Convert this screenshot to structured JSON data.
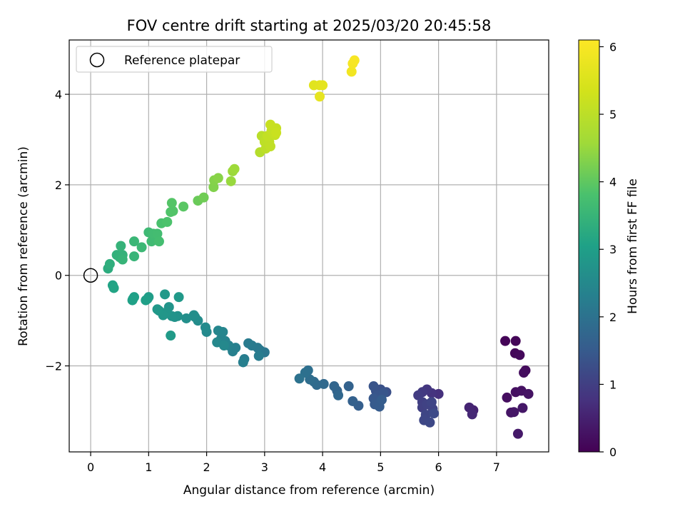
{
  "chart_data": {
    "type": "scatter",
    "title": "FOV centre drift starting at 2025/03/20 20:45:58",
    "xlabel": "Angular distance from reference (arcmin)",
    "ylabel": "Rotation from reference (arcmin)",
    "xlim": [
      -0.37,
      7.9
    ],
    "ylim": [
      -3.9,
      5.2
    ],
    "xticks": [
      "0",
      "1",
      "2",
      "3",
      "4",
      "5",
      "6",
      "7"
    ],
    "yticks": [
      "−2",
      "0",
      "2",
      "4"
    ],
    "grid": true,
    "legend": {
      "placement": "top-left",
      "entries": [
        "Reference platepar"
      ]
    },
    "reference": {
      "x": 0,
      "y": 0
    },
    "colorbar": {
      "label": "Hours from first FF file",
      "range": [
        0,
        6.1
      ],
      "ticks": [
        "0",
        "1",
        "2",
        "3",
        "4",
        "5",
        "6"
      ],
      "colormap": "viridis"
    },
    "points": [
      {
        "x": 7.15,
        "y": -1.45,
        "h": 0.05
      },
      {
        "x": 7.33,
        "y": -1.45,
        "h": 0.08
      },
      {
        "x": 7.32,
        "y": -1.72,
        "h": 0.1
      },
      {
        "x": 7.4,
        "y": -1.76,
        "h": 0.12
      },
      {
        "x": 7.5,
        "y": -2.1,
        "h": 0.15
      },
      {
        "x": 7.47,
        "y": -2.15,
        "h": 0.18
      },
      {
        "x": 7.18,
        "y": -2.7,
        "h": 0.2
      },
      {
        "x": 7.33,
        "y": -2.58,
        "h": 0.22
      },
      {
        "x": 7.43,
        "y": -2.55,
        "h": 0.25
      },
      {
        "x": 7.55,
        "y": -2.62,
        "h": 0.28
      },
      {
        "x": 7.25,
        "y": -3.03,
        "h": 0.3
      },
      {
        "x": 7.3,
        "y": -3.02,
        "h": 0.32
      },
      {
        "x": 7.45,
        "y": -2.93,
        "h": 0.35
      },
      {
        "x": 7.37,
        "y": -3.5,
        "h": 0.38
      },
      {
        "x": 6.6,
        "y": -2.98,
        "h": 0.5
      },
      {
        "x": 6.53,
        "y": -2.92,
        "h": 0.55
      },
      {
        "x": 6.58,
        "y": -3.07,
        "h": 0.6
      },
      {
        "x": 6.0,
        "y": -2.62,
        "h": 0.75
      },
      {
        "x": 5.88,
        "y": -2.6,
        "h": 0.8
      },
      {
        "x": 5.8,
        "y": -2.52,
        "h": 0.85
      },
      {
        "x": 5.72,
        "y": -2.58,
        "h": 0.9
      },
      {
        "x": 5.65,
        "y": -2.65,
        "h": 0.95
      },
      {
        "x": 5.72,
        "y": -2.8,
        "h": 1.0
      },
      {
        "x": 5.72,
        "y": -2.92,
        "h": 1.02
      },
      {
        "x": 5.8,
        "y": -2.85,
        "h": 1.05
      },
      {
        "x": 5.9,
        "y": -2.95,
        "h": 1.07
      },
      {
        "x": 5.88,
        "y": -2.8,
        "h": 1.1
      },
      {
        "x": 5.78,
        "y": -3.08,
        "h": 1.12
      },
      {
        "x": 5.75,
        "y": -3.2,
        "h": 1.15
      },
      {
        "x": 5.85,
        "y": -3.25,
        "h": 1.17
      },
      {
        "x": 5.92,
        "y": -3.05,
        "h": 1.2
      },
      {
        "x": 5.1,
        "y": -2.58,
        "h": 1.3
      },
      {
        "x": 5.0,
        "y": -2.52,
        "h": 1.32
      },
      {
        "x": 4.92,
        "y": -2.55,
        "h": 1.35
      },
      {
        "x": 4.88,
        "y": -2.45,
        "h": 1.38
      },
      {
        "x": 4.95,
        "y": -2.65,
        "h": 1.4
      },
      {
        "x": 5.05,
        "y": -2.6,
        "h": 1.42
      },
      {
        "x": 4.88,
        "y": -2.72,
        "h": 1.45
      },
      {
        "x": 4.98,
        "y": -2.8,
        "h": 1.47
      },
      {
        "x": 4.9,
        "y": -2.85,
        "h": 1.5
      },
      {
        "x": 4.98,
        "y": -2.9,
        "h": 1.52
      },
      {
        "x": 5.02,
        "y": -2.75,
        "h": 1.55
      },
      {
        "x": 4.62,
        "y": -2.88,
        "h": 1.6
      },
      {
        "x": 4.52,
        "y": -2.78,
        "h": 1.63
      },
      {
        "x": 4.45,
        "y": -2.45,
        "h": 1.66
      },
      {
        "x": 4.25,
        "y": -2.55,
        "h": 1.7
      },
      {
        "x": 4.2,
        "y": -2.45,
        "h": 1.73
      },
      {
        "x": 4.27,
        "y": -2.65,
        "h": 1.76
      },
      {
        "x": 4.02,
        "y": -2.4,
        "h": 1.8
      },
      {
        "x": 3.9,
        "y": -2.42,
        "h": 1.83
      },
      {
        "x": 3.85,
        "y": -2.35,
        "h": 1.86
      },
      {
        "x": 3.78,
        "y": -2.3,
        "h": 1.9
      },
      {
        "x": 3.75,
        "y": -2.1,
        "h": 1.93
      },
      {
        "x": 3.7,
        "y": -2.15,
        "h": 1.96
      },
      {
        "x": 3.6,
        "y": -2.28,
        "h": 2.0
      },
      {
        "x": 3.0,
        "y": -1.7,
        "h": 2.1
      },
      {
        "x": 2.92,
        "y": -1.65,
        "h": 2.12
      },
      {
        "x": 2.88,
        "y": -1.6,
        "h": 2.15
      },
      {
        "x": 2.78,
        "y": -1.55,
        "h": 2.18
      },
      {
        "x": 2.72,
        "y": -1.5,
        "h": 2.2
      },
      {
        "x": 2.9,
        "y": -1.78,
        "h": 2.22
      },
      {
        "x": 2.65,
        "y": -1.85,
        "h": 2.25
      },
      {
        "x": 2.63,
        "y": -1.92,
        "h": 2.28
      },
      {
        "x": 2.5,
        "y": -1.6,
        "h": 2.3
      },
      {
        "x": 2.45,
        "y": -1.68,
        "h": 2.32
      },
      {
        "x": 2.38,
        "y": -1.55,
        "h": 2.35
      },
      {
        "x": 2.32,
        "y": -1.45,
        "h": 2.38
      },
      {
        "x": 2.25,
        "y": -1.4,
        "h": 2.4
      },
      {
        "x": 2.28,
        "y": -1.25,
        "h": 2.42
      },
      {
        "x": 2.2,
        "y": -1.22,
        "h": 2.45
      },
      {
        "x": 2.18,
        "y": -1.48,
        "h": 2.48
      },
      {
        "x": 2.3,
        "y": -1.55,
        "h": 2.5
      },
      {
        "x": 2.0,
        "y": -1.25,
        "h": 2.52
      },
      {
        "x": 1.98,
        "y": -1.15,
        "h": 2.55
      },
      {
        "x": 1.85,
        "y": -1.0,
        "h": 2.58
      },
      {
        "x": 1.8,
        "y": -0.92,
        "h": 2.6
      },
      {
        "x": 1.78,
        "y": -0.88,
        "h": 2.62
      },
      {
        "x": 1.65,
        "y": -0.95,
        "h": 2.65
      },
      {
        "x": 1.5,
        "y": -0.9,
        "h": 2.7
      },
      {
        "x": 1.45,
        "y": -0.92,
        "h": 2.72
      },
      {
        "x": 1.4,
        "y": -0.9,
        "h": 2.74
      },
      {
        "x": 1.35,
        "y": -0.7,
        "h": 2.76
      },
      {
        "x": 1.3,
        "y": -0.82,
        "h": 2.78
      },
      {
        "x": 1.25,
        "y": -0.88,
        "h": 2.8
      },
      {
        "x": 1.18,
        "y": -0.78,
        "h": 2.82
      },
      {
        "x": 1.15,
        "y": -0.75,
        "h": 2.84
      },
      {
        "x": 1.28,
        "y": -0.42,
        "h": 2.86
      },
      {
        "x": 1.52,
        "y": -0.48,
        "h": 2.88
      },
      {
        "x": 1.38,
        "y": -1.33,
        "h": 2.9
      },
      {
        "x": 1.0,
        "y": -0.48,
        "h": 2.95
      },
      {
        "x": 0.98,
        "y": -0.52,
        "h": 2.97
      },
      {
        "x": 0.95,
        "y": -0.55,
        "h": 3.0
      },
      {
        "x": 0.75,
        "y": -0.48,
        "h": 3.02
      },
      {
        "x": 0.73,
        "y": -0.52,
        "h": 3.04
      },
      {
        "x": 0.72,
        "y": -0.55,
        "h": 3.06
      },
      {
        "x": 0.38,
        "y": -0.22,
        "h": 3.1
      },
      {
        "x": 0.4,
        "y": -0.28,
        "h": 3.12
      },
      {
        "x": 0.3,
        "y": 0.15,
        "h": 3.3
      },
      {
        "x": 0.33,
        "y": 0.25,
        "h": 3.35
      },
      {
        "x": 0.45,
        "y": 0.45,
        "h": 3.4
      },
      {
        "x": 0.5,
        "y": 0.4,
        "h": 3.42
      },
      {
        "x": 0.55,
        "y": 0.45,
        "h": 3.44
      },
      {
        "x": 0.52,
        "y": 0.65,
        "h": 3.46
      },
      {
        "x": 0.55,
        "y": 0.35,
        "h": 3.48
      },
      {
        "x": 0.75,
        "y": 0.42,
        "h": 3.5
      },
      {
        "x": 0.75,
        "y": 0.75,
        "h": 3.55
      },
      {
        "x": 0.88,
        "y": 0.62,
        "h": 3.58
      },
      {
        "x": 1.0,
        "y": 0.95,
        "h": 3.62
      },
      {
        "x": 1.05,
        "y": 0.75,
        "h": 3.65
      },
      {
        "x": 1.08,
        "y": 0.92,
        "h": 3.68
      },
      {
        "x": 1.15,
        "y": 0.92,
        "h": 3.7
      },
      {
        "x": 1.18,
        "y": 0.75,
        "h": 3.72
      },
      {
        "x": 1.22,
        "y": 1.15,
        "h": 3.8
      },
      {
        "x": 1.32,
        "y": 1.18,
        "h": 3.83
      },
      {
        "x": 1.38,
        "y": 1.4,
        "h": 3.86
      },
      {
        "x": 1.42,
        "y": 1.42,
        "h": 3.88
      },
      {
        "x": 1.4,
        "y": 1.6,
        "h": 3.9
      },
      {
        "x": 1.6,
        "y": 1.52,
        "h": 3.95
      },
      {
        "x": 1.85,
        "y": 1.65,
        "h": 4.1
      },
      {
        "x": 1.95,
        "y": 1.72,
        "h": 4.15
      },
      {
        "x": 2.12,
        "y": 1.95,
        "h": 4.3
      },
      {
        "x": 2.13,
        "y": 2.1,
        "h": 4.33
      },
      {
        "x": 2.2,
        "y": 2.15,
        "h": 4.36
      },
      {
        "x": 2.42,
        "y": 2.08,
        "h": 4.5
      },
      {
        "x": 2.45,
        "y": 2.3,
        "h": 4.53
      },
      {
        "x": 2.48,
        "y": 2.35,
        "h": 4.56
      },
      {
        "x": 2.92,
        "y": 2.72,
        "h": 4.9
      },
      {
        "x": 2.95,
        "y": 3.08,
        "h": 4.95
      },
      {
        "x": 3.02,
        "y": 2.8,
        "h": 5.0
      },
      {
        "x": 3.0,
        "y": 2.95,
        "h": 5.02
      },
      {
        "x": 3.08,
        "y": 2.95,
        "h": 5.05
      },
      {
        "x": 3.1,
        "y": 2.85,
        "h": 5.07
      },
      {
        "x": 3.05,
        "y": 3.08,
        "h": 5.1
      },
      {
        "x": 3.12,
        "y": 3.2,
        "h": 5.12
      },
      {
        "x": 3.18,
        "y": 3.1,
        "h": 5.14
      },
      {
        "x": 3.2,
        "y": 3.25,
        "h": 5.16
      },
      {
        "x": 3.1,
        "y": 3.33,
        "h": 5.18
      },
      {
        "x": 3.2,
        "y": 3.15,
        "h": 5.2
      },
      {
        "x": 3.85,
        "y": 4.2,
        "h": 5.6
      },
      {
        "x": 3.95,
        "y": 4.2,
        "h": 5.63
      },
      {
        "x": 4.0,
        "y": 4.2,
        "h": 5.66
      },
      {
        "x": 3.95,
        "y": 3.95,
        "h": 5.7
      },
      {
        "x": 4.5,
        "y": 4.5,
        "h": 5.9
      },
      {
        "x": 4.52,
        "y": 4.68,
        "h": 5.95
      },
      {
        "x": 4.55,
        "y": 4.75,
        "h": 6.0
      }
    ]
  }
}
